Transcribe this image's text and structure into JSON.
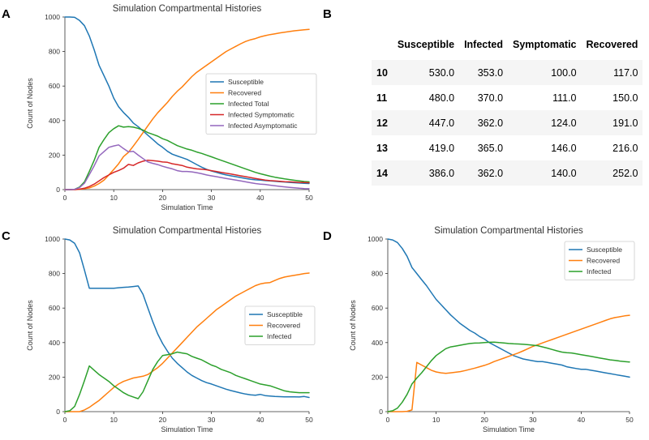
{
  "panels": {
    "a": {
      "letter": "A"
    },
    "b": {
      "letter": "B"
    },
    "c": {
      "letter": "C"
    },
    "d": {
      "letter": "D"
    }
  },
  "table_b": {
    "index_header": "",
    "columns": [
      "Susceptible",
      "Infected",
      "Symptomatic",
      "Recovered"
    ],
    "rows": [
      {
        "index": "10",
        "values": [
          "530.0",
          "353.0",
          "100.0",
          "117.0"
        ]
      },
      {
        "index": "11",
        "values": [
          "480.0",
          "370.0",
          "111.0",
          "150.0"
        ]
      },
      {
        "index": "12",
        "values": [
          "447.0",
          "362.0",
          "124.0",
          "191.0"
        ]
      },
      {
        "index": "13",
        "values": [
          "419.0",
          "365.0",
          "146.0",
          "216.0"
        ]
      },
      {
        "index": "14",
        "values": [
          "386.0",
          "362.0",
          "140.0",
          "252.0"
        ]
      }
    ]
  },
  "chart_data": [
    {
      "panel": "A",
      "type": "line",
      "title": "Simulation Compartmental Histories",
      "xlabel": "Simulation Time",
      "ylabel": "Count of Nodes",
      "xlim": [
        0,
        50
      ],
      "ylim": [
        0,
        1000
      ],
      "xticks": [
        0,
        10,
        20,
        30,
        40,
        50
      ],
      "yticks": [
        0,
        200,
        400,
        600,
        800,
        1000
      ],
      "grid": false,
      "legend_position": "center-right",
      "x": [
        0,
        1,
        2,
        3,
        4,
        5,
        6,
        7,
        8,
        9,
        10,
        11,
        12,
        13,
        14,
        15,
        16,
        17,
        18,
        19,
        20,
        21,
        22,
        23,
        24,
        25,
        26,
        27,
        28,
        29,
        30,
        31,
        32,
        33,
        34,
        35,
        36,
        37,
        38,
        39,
        40,
        41,
        42,
        43,
        44,
        45,
        46,
        47,
        48,
        49,
        50
      ],
      "series": [
        {
          "name": "Susceptible",
          "color": "#1f77b4",
          "values": [
            1000,
            1000,
            998,
            980,
            950,
            890,
            810,
            720,
            660,
            600,
            530,
            480,
            447,
            419,
            386,
            365,
            340,
            315,
            290,
            265,
            245,
            222,
            205,
            195,
            185,
            175,
            160,
            145,
            130,
            118,
            108,
            100,
            92,
            85,
            80,
            75,
            70,
            65,
            60,
            57,
            55,
            52,
            50,
            48,
            46,
            44,
            42,
            40,
            38,
            36,
            35
          ]
        },
        {
          "name": "Recovered",
          "color": "#ff7f0e",
          "values": [
            0,
            0,
            0,
            2,
            5,
            10,
            20,
            35,
            55,
            85,
            117,
            150,
            191,
            216,
            252,
            290,
            330,
            370,
            410,
            445,
            475,
            505,
            540,
            570,
            595,
            625,
            655,
            680,
            700,
            720,
            740,
            760,
            780,
            800,
            815,
            830,
            845,
            858,
            868,
            875,
            885,
            892,
            898,
            903,
            908,
            912,
            916,
            920,
            923,
            926,
            928
          ]
        },
        {
          "name": "Infected Total",
          "color": "#2ca02c",
          "values": [
            0,
            0,
            2,
            15,
            45,
            105,
            170,
            245,
            290,
            330,
            353,
            370,
            362,
            365,
            362,
            355,
            345,
            330,
            320,
            310,
            295,
            285,
            270,
            255,
            245,
            235,
            228,
            218,
            210,
            200,
            190,
            180,
            170,
            160,
            150,
            140,
            130,
            120,
            110,
            100,
            92,
            85,
            78,
            72,
            67,
            62,
            58,
            54,
            50,
            47,
            45
          ]
        },
        {
          "name": "Infected Symptomatic",
          "color": "#d62728",
          "values": [
            0,
            0,
            0,
            3,
            8,
            18,
            32,
            50,
            70,
            85,
            100,
            111,
            124,
            146,
            140,
            155,
            165,
            170,
            168,
            165,
            160,
            158,
            150,
            145,
            140,
            130,
            125,
            120,
            118,
            115,
            110,
            105,
            100,
            95,
            90,
            85,
            80,
            75,
            70,
            65,
            60,
            55,
            52,
            50,
            48,
            46,
            45,
            43,
            42,
            41,
            40
          ]
        },
        {
          "name": "Infected Asymptomatic",
          "color": "#9467bd",
          "values": [
            0,
            0,
            2,
            12,
            37,
            87,
            138,
            195,
            220,
            245,
            253,
            259,
            238,
            219,
            222,
            200,
            180,
            160,
            152,
            145,
            135,
            127,
            120,
            110,
            105,
            105,
            103,
            98,
            92,
            85,
            80,
            75,
            70,
            65,
            60,
            55,
            50,
            45,
            40,
            35,
            32,
            30,
            26,
            22,
            19,
            16,
            13,
            11,
            8,
            6,
            5
          ]
        }
      ]
    },
    {
      "panel": "C",
      "type": "line",
      "title": "Simulation Compartmental Histories",
      "xlabel": "Simulation Time",
      "ylabel": "Count of Nodes",
      "xlim": [
        0,
        50
      ],
      "ylim": [
        0,
        1000
      ],
      "xticks": [
        0,
        10,
        20,
        30,
        40,
        50
      ],
      "yticks": [
        0,
        200,
        400,
        600,
        800,
        1000
      ],
      "grid": false,
      "legend_position": "center-right",
      "x": [
        0,
        1,
        2,
        3,
        4,
        5,
        6,
        7,
        8,
        9,
        10,
        11,
        12,
        13,
        14,
        15,
        16,
        17,
        18,
        19,
        20,
        21,
        22,
        23,
        24,
        25,
        26,
        27,
        28,
        29,
        30,
        31,
        32,
        33,
        34,
        35,
        36,
        37,
        38,
        39,
        40,
        41,
        42,
        43,
        44,
        45,
        46,
        47,
        48,
        49,
        50
      ],
      "series": [
        {
          "name": "Susceptible",
          "color": "#1f77b4",
          "values": [
            1000,
            995,
            975,
            920,
            820,
            715,
            715,
            715,
            715,
            715,
            715,
            718,
            720,
            722,
            725,
            728,
            680,
            600,
            520,
            450,
            395,
            350,
            310,
            280,
            255,
            230,
            210,
            195,
            180,
            168,
            160,
            150,
            140,
            130,
            122,
            115,
            108,
            102,
            97,
            95,
            100,
            93,
            90,
            88,
            87,
            86,
            86,
            86,
            85,
            88,
            82
          ]
        },
        {
          "name": "Recovered",
          "color": "#ff7f0e",
          "values": [
            0,
            0,
            0,
            0,
            10,
            25,
            45,
            65,
            90,
            115,
            140,
            160,
            175,
            185,
            195,
            200,
            205,
            215,
            235,
            255,
            280,
            310,
            340,
            370,
            400,
            430,
            460,
            490,
            515,
            540,
            565,
            590,
            610,
            630,
            650,
            670,
            685,
            700,
            715,
            730,
            740,
            745,
            748,
            760,
            772,
            780,
            785,
            790,
            795,
            800,
            803
          ]
        },
        {
          "name": "Infected",
          "color": "#2ca02c",
          "values": [
            0,
            5,
            30,
            100,
            180,
            265,
            240,
            215,
            195,
            175,
            150,
            130,
            110,
            95,
            85,
            75,
            115,
            180,
            245,
            290,
            325,
            330,
            335,
            345,
            340,
            335,
            320,
            310,
            300,
            285,
            270,
            260,
            245,
            235,
            225,
            210,
            200,
            190,
            180,
            170,
            160,
            155,
            150,
            140,
            130,
            120,
            115,
            112,
            110,
            110,
            110
          ]
        }
      ]
    },
    {
      "panel": "D",
      "type": "line",
      "title": "Simulation Compartmental Histories",
      "xlabel": "Simulation Time",
      "ylabel": "Count of Nodes",
      "xlim": [
        0,
        50
      ],
      "ylim": [
        0,
        1000
      ],
      "xticks": [
        0,
        10,
        20,
        30,
        40,
        50
      ],
      "yticks": [
        0,
        200,
        400,
        600,
        800,
        1000
      ],
      "grid": false,
      "legend_position": "top-right",
      "x": [
        0,
        1,
        2,
        3,
        4,
        5,
        6,
        7,
        8,
        9,
        10,
        11,
        12,
        13,
        14,
        15,
        16,
        17,
        18,
        19,
        20,
        21,
        22,
        23,
        24,
        25,
        26,
        27,
        28,
        29,
        30,
        31,
        32,
        33,
        34,
        35,
        36,
        37,
        38,
        39,
        40,
        41,
        42,
        43,
        44,
        45,
        46,
        47,
        48,
        49,
        50
      ],
      "series": [
        {
          "name": "Susceptible",
          "color": "#1f77b4",
          "values": [
            1000,
            995,
            980,
            945,
            900,
            835,
            800,
            765,
            730,
            690,
            650,
            620,
            590,
            560,
            535,
            510,
            490,
            470,
            455,
            435,
            420,
            400,
            385,
            370,
            355,
            340,
            325,
            315,
            305,
            300,
            295,
            290,
            290,
            285,
            280,
            275,
            270,
            260,
            255,
            250,
            245,
            245,
            240,
            235,
            230,
            225,
            220,
            215,
            210,
            205,
            200
          ]
        },
        {
          "name": "Recovered",
          "color": "#ff7f0e",
          "values": [
            0,
            0,
            0,
            0,
            2,
            10,
            285,
            270,
            255,
            240,
            230,
            225,
            222,
            225,
            228,
            232,
            238,
            245,
            252,
            260,
            268,
            278,
            290,
            300,
            310,
            320,
            330,
            340,
            352,
            365,
            378,
            388,
            398,
            408,
            418,
            428,
            438,
            448,
            458,
            468,
            478,
            488,
            498,
            508,
            518,
            528,
            538,
            545,
            550,
            555,
            558
          ]
        },
        {
          "name": "Infected",
          "color": "#2ca02c",
          "values": [
            0,
            5,
            20,
            55,
            100,
            160,
            195,
            225,
            260,
            295,
            325,
            345,
            365,
            375,
            380,
            385,
            390,
            395,
            397,
            398,
            400,
            402,
            403,
            400,
            398,
            395,
            393,
            392,
            390,
            388,
            385,
            382,
            375,
            368,
            360,
            352,
            345,
            342,
            340,
            335,
            330,
            325,
            320,
            315,
            310,
            305,
            300,
            297,
            293,
            290,
            288
          ]
        }
      ]
    }
  ]
}
